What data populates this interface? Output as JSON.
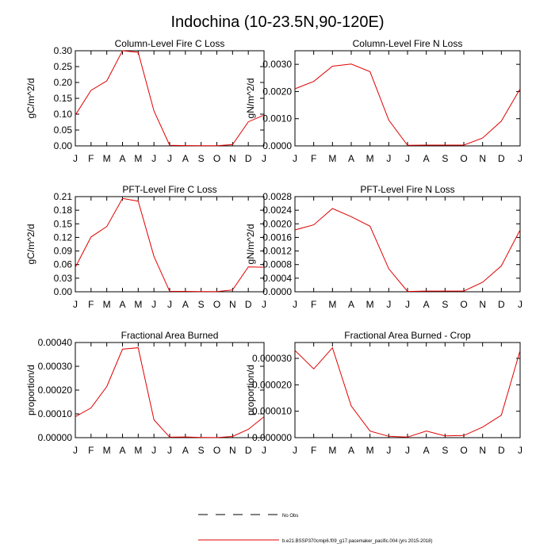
{
  "title": "Indochina (10-23.5N,90-120E)",
  "legend": {
    "obs_label": "No Obs",
    "model_label": "b.e21.BSSP370cmip6.f09_g17.pacemaker_pacific.004 (yrs 2015-2018)",
    "obs_color": "#000000",
    "model_color": "#e00000"
  },
  "chart_data": [
    {
      "type": "line",
      "title": "Column-Level Fire C Loss",
      "ylabel": "gC/m^2/d",
      "categories": [
        "J",
        "F",
        "M",
        "A",
        "M",
        "J",
        "J",
        "A",
        "S",
        "O",
        "N",
        "D",
        "J"
      ],
      "ylim": [
        0,
        0.3
      ],
      "yticks": [
        0,
        0.05,
        0.1,
        0.15,
        0.2,
        0.25,
        0.3
      ],
      "ytick_labels": [
        "0.00",
        "0.05",
        "0.10",
        "0.15",
        "0.20",
        "0.25",
        "0.30"
      ],
      "series": [
        {
          "name": "model",
          "color": "#e00000",
          "values": [
            0.097,
            0.175,
            0.205,
            0.3,
            0.295,
            0.11,
            0.002,
            0.001,
            0.0005,
            0.0005,
            0.004,
            0.076,
            0.097
          ]
        }
      ]
    },
    {
      "type": "line",
      "title": "Column-Level Fire N Loss",
      "ylabel": "gN/m^2/d",
      "categories": [
        "J",
        "F",
        "M",
        "A",
        "M",
        "J",
        "J",
        "A",
        "S",
        "O",
        "N",
        "D",
        "J"
      ],
      "ylim": [
        0,
        0.0035
      ],
      "yticks": [
        0,
        0.001,
        0.002,
        0.003
      ],
      "ytick_labels": [
        "0.0000",
        "0.0010",
        "0.0020",
        "0.0030"
      ],
      "series": [
        {
          "name": "model",
          "color": "#e00000",
          "values": [
            0.0021,
            0.00237,
            0.00293,
            0.00301,
            0.00273,
            0.00095,
            2e-05,
            3e-05,
            3e-05,
            3e-05,
            0.00029,
            0.00091,
            0.0021
          ]
        }
      ]
    },
    {
      "type": "line",
      "title": "PFT-Level Fire C Loss",
      "ylabel": "gC/m^2/d",
      "categories": [
        "J",
        "F",
        "M",
        "A",
        "M",
        "J",
        "J",
        "A",
        "S",
        "O",
        "N",
        "D",
        "J"
      ],
      "ylim": [
        0,
        0.21
      ],
      "yticks": [
        0,
        0.03,
        0.06,
        0.09,
        0.12,
        0.15,
        0.18,
        0.21
      ],
      "ytick_labels": [
        "0.00",
        "0.03",
        "0.06",
        "0.09",
        "0.12",
        "0.15",
        "0.18",
        "0.21"
      ],
      "series": [
        {
          "name": "model",
          "color": "#e00000",
          "values": [
            0.054,
            0.121,
            0.144,
            0.206,
            0.2,
            0.078,
            0.001,
            0.0008,
            0.0004,
            0.0004,
            0.004,
            0.055,
            0.054
          ]
        }
      ]
    },
    {
      "type": "line",
      "title": "PFT-Level Fire N Loss",
      "ylabel": "gN/m^2/d",
      "categories": [
        "J",
        "F",
        "M",
        "A",
        "M",
        "J",
        "J",
        "A",
        "S",
        "O",
        "N",
        "D",
        "J"
      ],
      "ylim": [
        0,
        0.0028
      ],
      "yticks": [
        0,
        0.0004,
        0.0008,
        0.0012,
        0.0016,
        0.002,
        0.0024,
        0.0028
      ],
      "ytick_labels": [
        "0.0000",
        "0.0004",
        "0.0008",
        "0.0012",
        "0.0016",
        "0.0020",
        "0.0024",
        "0.0028"
      ],
      "series": [
        {
          "name": "model",
          "color": "#e00000",
          "values": [
            0.00182,
            0.00197,
            0.00245,
            0.00221,
            0.00193,
            0.00068,
            1e-05,
            2e-05,
            2e-05,
            2e-05,
            0.00028,
            0.00076,
            0.00182
          ]
        }
      ]
    },
    {
      "type": "line",
      "title": "Fractional Area Burned",
      "ylabel": "proportion/d",
      "categories": [
        "J",
        "F",
        "M",
        "A",
        "M",
        "J",
        "J",
        "A",
        "S",
        "O",
        "N",
        "D",
        "J"
      ],
      "ylim": [
        0,
        0.0004
      ],
      "yticks": [
        0,
        0.0001,
        0.0002,
        0.0003,
        0.0004
      ],
      "ytick_labels": [
        "0.00000",
        "0.00010",
        "0.00020",
        "0.00030",
        "0.00040"
      ],
      "series": [
        {
          "name": "model",
          "color": "#e00000",
          "values": [
            8.8e-05,
            0.000125,
            0.000215,
            0.000372,
            0.000378,
            7.5e-05,
            2e-06,
            3e-06,
            1e-06,
            5e-07,
            5e-06,
            3.5e-05,
            8.8e-05
          ]
        }
      ]
    },
    {
      "type": "line",
      "title": "Fractional Area Burned - Crop",
      "ylabel": "proportion/d",
      "categories": [
        "J",
        "F",
        "M",
        "A",
        "M",
        "J",
        "J",
        "A",
        "S",
        "O",
        "N",
        "D",
        "J"
      ],
      "ylim": [
        0,
        3.6e-05
      ],
      "yticks": [
        0,
        1e-05,
        2e-05,
        3e-05
      ],
      "ytick_labels": [
        "0.000000",
        "0.000010",
        "0.000020",
        "0.000030"
      ],
      "series": [
        {
          "name": "model",
          "color": "#e00000",
          "values": [
            3.3e-05,
            2.6e-05,
            3.4e-05,
            1.2e-05,
            2.5e-06,
            5e-07,
            2e-07,
            2.5e-06,
            7e-07,
            8e-07,
            4e-06,
            8.5e-06,
            3.3e-05
          ]
        }
      ]
    }
  ]
}
